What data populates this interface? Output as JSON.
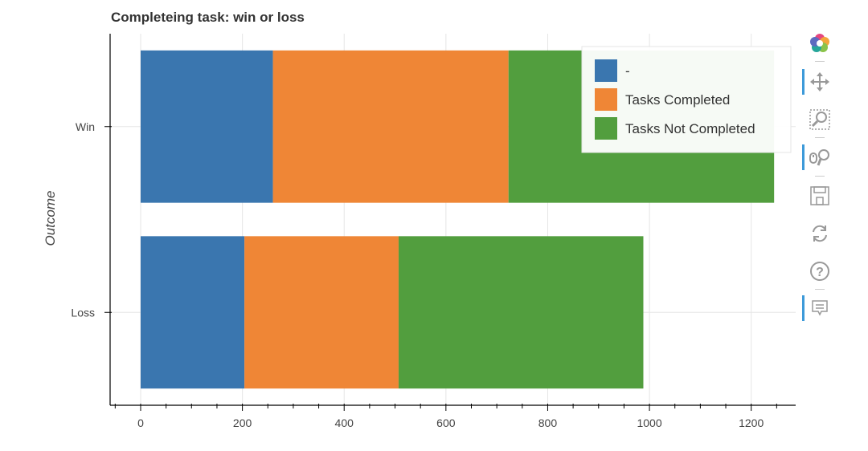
{
  "chart_data": {
    "type": "bar",
    "orientation": "horizontal",
    "stacked": true,
    "title": "Completeing task: win or loss",
    "ylabel": "Outcome",
    "xlabel": "",
    "categories": [
      "Win",
      "Loss"
    ],
    "series": [
      {
        "name": "-",
        "values": [
          260,
          204
        ],
        "color": "#3a76af"
      },
      {
        "name": "Tasks Completed",
        "values": [
          463,
          303
        ],
        "color": "#ef8636"
      },
      {
        "name": "Tasks Not Completed",
        "values": [
          522,
          481
        ],
        "color": "#529e3e"
      }
    ],
    "xlim": [
      -60,
      1300
    ],
    "xticks": [
      0,
      200,
      400,
      600,
      800,
      1000,
      1200
    ],
    "xtick_labels": [
      "0",
      "200",
      "400",
      "600",
      "800",
      "1000",
      "1200"
    ],
    "grid": true,
    "legend_position": "top-right"
  },
  "toolbar": {
    "tools": [
      {
        "name": "bokeh-logo-icon",
        "active": false
      },
      {
        "name": "pan-icon",
        "active": true
      },
      {
        "name": "box-zoom-icon",
        "active": false
      },
      {
        "name": "wheel-zoom-icon",
        "active": true
      },
      {
        "name": "save-icon",
        "active": false
      },
      {
        "name": "reset-icon",
        "active": false
      },
      {
        "name": "help-icon",
        "active": false
      },
      {
        "name": "hover-icon",
        "active": true
      }
    ]
  }
}
